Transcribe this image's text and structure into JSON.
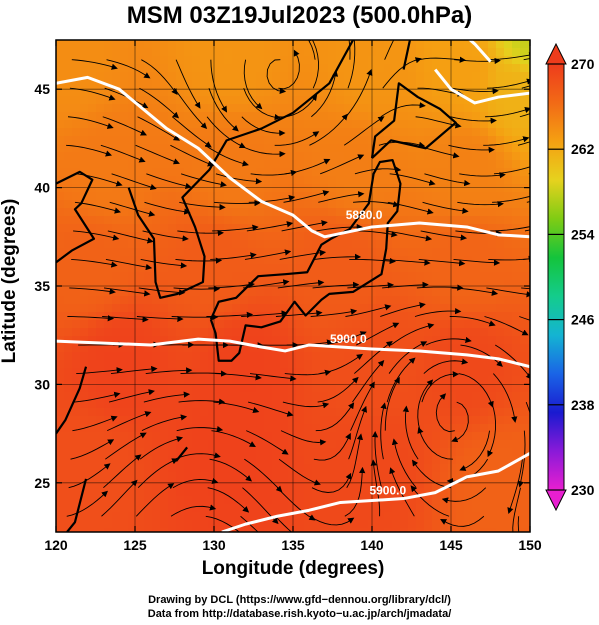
{
  "title": "MSM 03Z19Jul2023 (500.0hPa)",
  "chart_data": {
    "type": "map",
    "x_label": "Longitude (degrees)",
    "y_label": "Latitude  (degrees)",
    "x_range": [
      120,
      150
    ],
    "y_range": [
      22.5,
      47.5
    ],
    "x_ticks": [
      120,
      125,
      130,
      135,
      140,
      145,
      150
    ],
    "y_ticks": [
      25,
      30,
      35,
      40,
      45
    ],
    "colorbar": {
      "min": 230,
      "max": 270,
      "ticks": [
        230,
        238,
        246,
        254,
        262,
        270
      ],
      "colors": [
        "#e81fd0",
        "#8a1ad8",
        "#1a1ad0",
        "#1a64e6",
        "#14b4d2",
        "#14cc8c",
        "#14c43c",
        "#7fcc14",
        "#e6d21e",
        "#f5a012",
        "#f26a16",
        "#ee3c1c"
      ]
    },
    "contours": [
      {
        "label": "5880.0",
        "points": [
          [
            120,
            45.3
          ],
          [
            122,
            45.6
          ],
          [
            124,
            45
          ],
          [
            125.5,
            44
          ],
          [
            127,
            43
          ],
          [
            129,
            42
          ],
          [
            131,
            40.5
          ],
          [
            133,
            39.3
          ],
          [
            135,
            38.6
          ],
          [
            136.2,
            37.8
          ],
          [
            137,
            37.5
          ],
          [
            140,
            38
          ],
          [
            143,
            38.2
          ],
          [
            146,
            38
          ],
          [
            148,
            37.6
          ],
          [
            150,
            37.5
          ]
        ]
      },
      {
        "label": "5880.0",
        "points": [
          [
            144,
            46
          ],
          [
            145,
            45
          ],
          [
            146.5,
            44.3
          ],
          [
            148,
            44.6
          ],
          [
            150,
            44.8
          ]
        ]
      },
      {
        "label": "5880.0",
        "points": [
          [
            145.5,
            48
          ],
          [
            146.5,
            47.3
          ],
          [
            147.5,
            46.4
          ]
        ]
      },
      {
        "label": "5900.0",
        "points": [
          [
            120,
            32.2
          ],
          [
            123,
            32.1
          ],
          [
            126,
            32
          ],
          [
            129,
            32.3
          ],
          [
            131,
            32.2
          ],
          [
            133,
            31.9
          ],
          [
            134.5,
            31.7
          ],
          [
            136,
            32
          ],
          [
            138,
            31.9
          ],
          [
            140,
            31.8
          ],
          [
            143,
            31.7
          ],
          [
            146,
            31.5
          ],
          [
            148,
            31.3
          ],
          [
            150,
            30.9
          ]
        ]
      },
      {
        "label": "5900.0",
        "points": [
          [
            130.5,
            22.5
          ],
          [
            132,
            22.9
          ],
          [
            134,
            23.3
          ],
          [
            136,
            23.6
          ],
          [
            138,
            24
          ],
          [
            140,
            24.1
          ],
          [
            142,
            24.2
          ],
          [
            144,
            24.5
          ],
          [
            146,
            25.3
          ],
          [
            148,
            25.6
          ],
          [
            150,
            26.5
          ]
        ]
      }
    ],
    "vortices": [
      {
        "lon": 134.3,
        "lat": 45.5,
        "sense": "counterclockwise"
      },
      {
        "lon": 145.0,
        "lat": 29.0,
        "sense": "clockwise"
      }
    ],
    "temperature_anchors": [
      {
        "lon": 121,
        "lat": 46,
        "value": 264
      },
      {
        "lon": 131,
        "lat": 46.5,
        "value": 263.5
      },
      {
        "lon": 140,
        "lat": 46,
        "value": 263.5
      },
      {
        "lon": 146,
        "lat": 46,
        "value": 262.8
      },
      {
        "lon": 150,
        "lat": 47.5,
        "value": 258
      },
      {
        "lon": 149,
        "lat": 45,
        "value": 261.5
      },
      {
        "lon": 123,
        "lat": 41,
        "value": 265.3
      },
      {
        "lon": 131,
        "lat": 41,
        "value": 265.3
      },
      {
        "lon": 139,
        "lat": 41,
        "value": 265
      },
      {
        "lon": 146,
        "lat": 41,
        "value": 264.8
      },
      {
        "lon": 122,
        "lat": 36,
        "value": 267
      },
      {
        "lon": 130,
        "lat": 36,
        "value": 267.5
      },
      {
        "lon": 138,
        "lat": 36,
        "value": 267.5
      },
      {
        "lon": 146,
        "lat": 36,
        "value": 266.8
      },
      {
        "lon": 124,
        "lat": 31,
        "value": 269.5
      },
      {
        "lon": 132,
        "lat": 31,
        "value": 269.5
      },
      {
        "lon": 140,
        "lat": 31,
        "value": 268.5
      },
      {
        "lon": 146,
        "lat": 31,
        "value": 269
      },
      {
        "lon": 122,
        "lat": 26,
        "value": 268.5
      },
      {
        "lon": 131,
        "lat": 26,
        "value": 269.5
      },
      {
        "lon": 140,
        "lat": 26,
        "value": 269
      },
      {
        "lon": 148,
        "lat": 25,
        "value": 267
      }
    ],
    "wind_field": "streamlines with arrowheads; mainly westerly, anticyclonic gyre near 145E 29N"
  },
  "credits": {
    "line1": "Drawing by DCL (https://www.gfd−dennou.org/library/dcl/)",
    "line2": "Data from http://database.rish.kyoto−u.ac.jp/arch/jmadata/"
  }
}
